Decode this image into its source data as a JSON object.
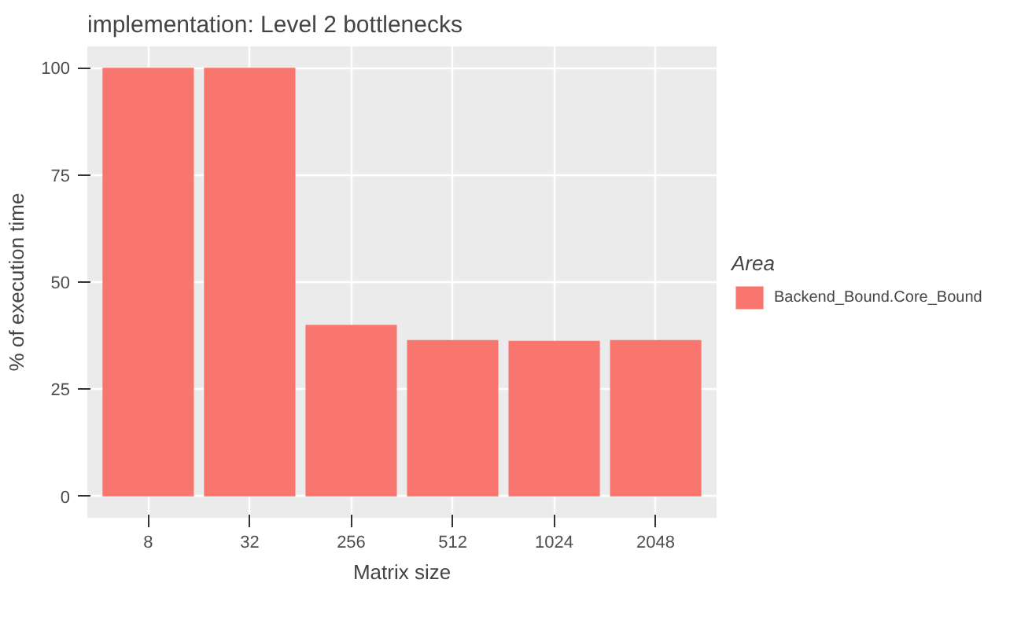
{
  "chart_data": {
    "type": "bar",
    "title": "implementation: Level 2 bottlenecks",
    "xlabel": "Matrix size",
    "ylabel": "% of execution time",
    "legend_title": "Area",
    "categories": [
      "8",
      "32",
      "256",
      "512",
      "1024",
      "2048"
    ],
    "series": [
      {
        "name": "Backend_Bound.Core_Bound",
        "color": "#f8766d",
        "values": [
          100,
          100,
          40,
          36.5,
          36.3,
          36.5
        ]
      }
    ],
    "ylim": [
      -5,
      105
    ],
    "yticks": [
      0,
      25,
      50,
      75,
      100
    ],
    "grid": true,
    "legend": "right"
  }
}
